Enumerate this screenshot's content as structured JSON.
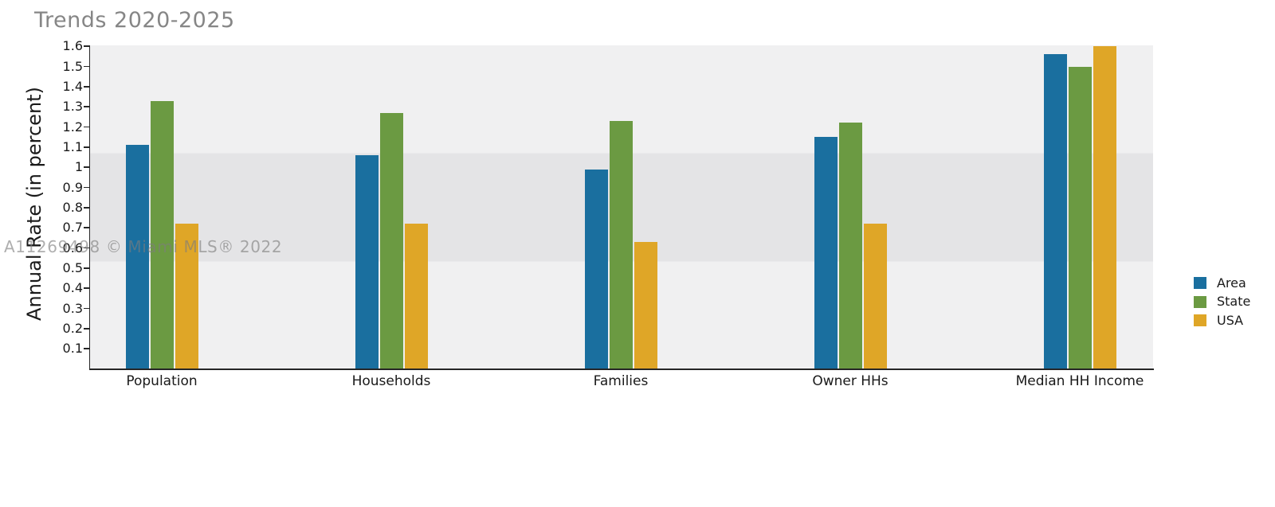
{
  "title": "Trends 2020-2025",
  "watermark": "A11269498 © Miami MLS® 2022",
  "chart_data": {
    "type": "bar",
    "title": "Trends 2020-2025",
    "xlabel": "",
    "ylabel": "Annual Rate (in percent)",
    "categories": [
      "Population",
      "Households",
      "Families",
      "Owner HHs",
      "Median HH Income"
    ],
    "series": [
      {
        "name": "Area",
        "color": "#1a6f9f",
        "values": [
          1.11,
          1.06,
          0.99,
          1.15,
          1.56
        ]
      },
      {
        "name": "State",
        "color": "#6b9a42",
        "values": [
          1.33,
          1.27,
          1.23,
          1.22,
          1.5
        ]
      },
      {
        "name": "USA",
        "color": "#dfa627",
        "values": [
          0.72,
          0.72,
          0.63,
          0.72,
          1.6
        ]
      }
    ],
    "yticks": [
      1.6,
      1.5,
      1.4,
      1.3,
      1.2,
      1.1,
      1,
      0.9,
      0.8,
      0.7,
      0.6,
      0.5,
      0.4,
      0.3,
      0.2,
      0.1
    ],
    "ylim": [
      0,
      1.6
    ],
    "grid": false,
    "legend": {
      "position": "right",
      "entries": [
        "Area",
        "State",
        "USA"
      ]
    },
    "plot_background": {
      "light": "#f0f0f1",
      "dark": "#e4e4e6"
    }
  }
}
